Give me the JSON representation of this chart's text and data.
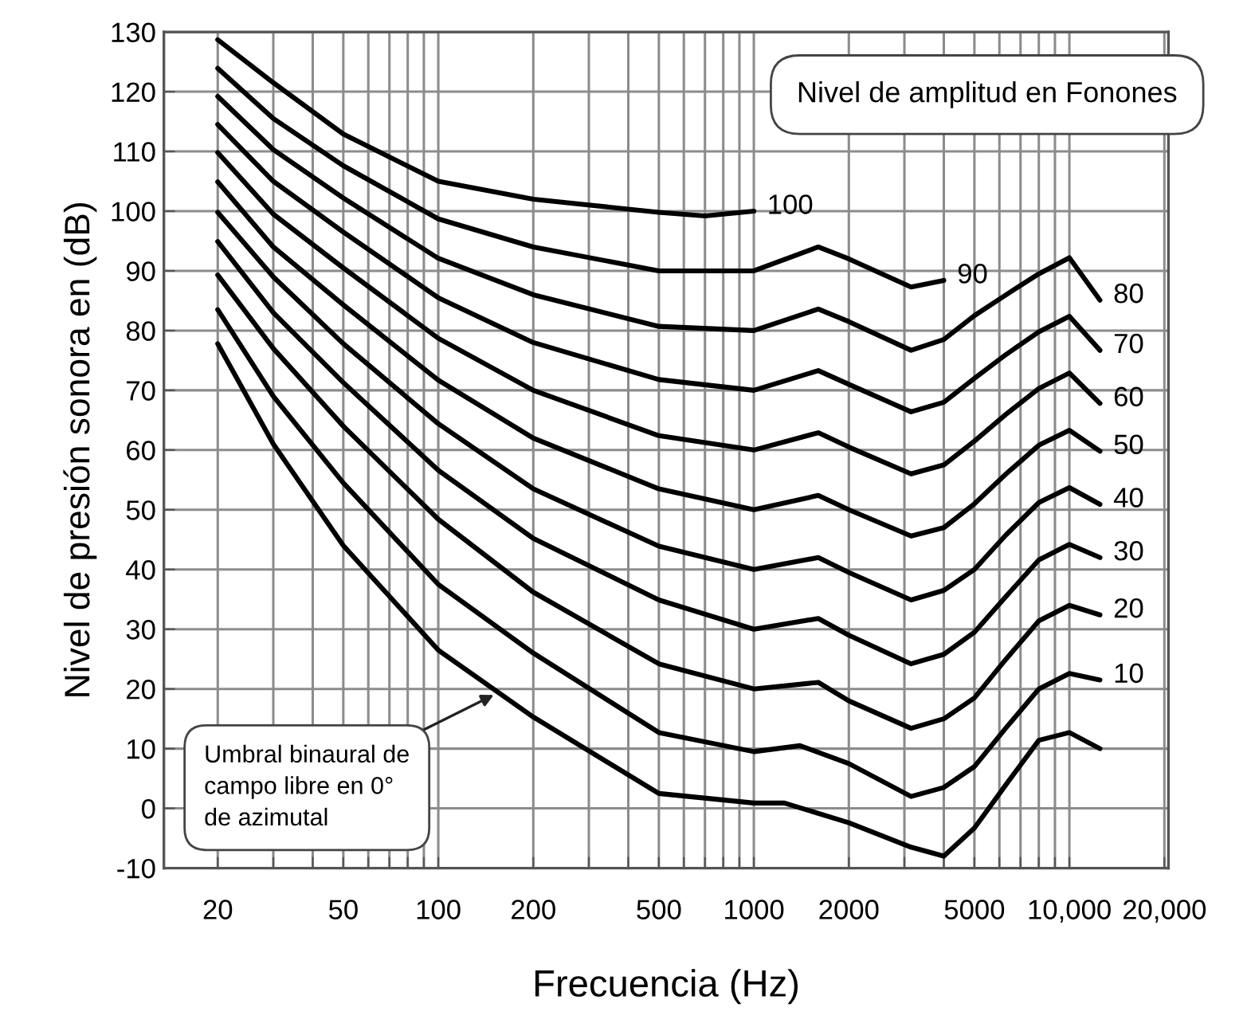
{
  "chart_data": {
    "type": "line",
    "xlabel": "Frecuencia (Hz)",
    "ylabel": "Nivel de presión sonora en (dB)",
    "log": "x",
    "grid": true,
    "legend": false,
    "xlim": [
      13.5,
      20600
    ],
    "ylim": [
      -10,
      130
    ],
    "xticks": [
      20,
      {
        "value": 30,
        "label": null
      },
      {
        "value": 40,
        "label": null
      },
      50,
      {
        "value": 60,
        "label": null
      },
      {
        "value": 70,
        "label": null
      },
      {
        "value": 80,
        "label": null
      },
      {
        "value": 90,
        "label": null
      },
      100,
      200,
      {
        "value": 300,
        "label": null
      },
      {
        "value": 400,
        "label": null
      },
      500,
      {
        "value": 600,
        "label": null
      },
      {
        "value": 700,
        "label": null
      },
      {
        "value": 800,
        "label": null
      },
      {
        "value": 900,
        "label": null
      },
      1000,
      2000,
      {
        "value": 3000,
        "label": null
      },
      {
        "value": 4000,
        "label": null
      },
      5000,
      {
        "value": 6000,
        "label": null
      },
      {
        "value": 7000,
        "label": null
      },
      {
        "value": 8000,
        "label": null
      },
      {
        "value": 9000,
        "label": null
      },
      {
        "value": 10000,
        "label": "10,000"
      },
      {
        "value": 20000,
        "label": "20,000"
      }
    ],
    "yticks": [
      -10,
      0,
      10,
      20,
      30,
      40,
      50,
      60,
      70,
      80,
      90,
      100,
      110,
      120,
      130
    ],
    "series": [
      {
        "name": "100",
        "color": "#000000",
        "x": [
          20,
          30,
          50,
          100,
          200,
          500,
          700,
          1000
        ],
        "values": [
          128.7,
          121.5,
          112.9,
          105,
          102,
          99.8,
          99.2,
          100
        ]
      },
      {
        "name": "90",
        "color": "#000000",
        "x": [
          20,
          30,
          50,
          100,
          200,
          500,
          1000,
          1600,
          2000,
          3150,
          4000
        ],
        "values": [
          123.9,
          115.5,
          107.6,
          98.7,
          94,
          90,
          90,
          94,
          92,
          87.3,
          88.4
        ]
      },
      {
        "name": "80",
        "color": "#000000",
        "x": [
          20,
          30,
          50,
          100,
          200,
          500,
          1000,
          1600,
          2000,
          3150,
          4000,
          5000,
          6300,
          8000,
          10000,
          12500
        ],
        "values": [
          119.2,
          110.3,
          102.2,
          92.1,
          86,
          80.7,
          80,
          83.6,
          81.5,
          76.7,
          78.5,
          82.5,
          86,
          89.5,
          92.2,
          85.1
        ]
      },
      {
        "name": "70",
        "color": "#000000",
        "x": [
          20,
          30,
          50,
          100,
          200,
          500,
          1000,
          1600,
          2000,
          3150,
          4000,
          5000,
          6300,
          8000,
          10000,
          12500
        ],
        "values": [
          114.5,
          105,
          96.5,
          85.5,
          78,
          71.8,
          70,
          73.3,
          71,
          66.4,
          68,
          72,
          76,
          79.8,
          82.4,
          76.7
        ]
      },
      {
        "name": "60",
        "color": "#000000",
        "x": [
          20,
          30,
          50,
          100,
          200,
          500,
          1000,
          1600,
          2000,
          3150,
          4000,
          5000,
          6300,
          8000,
          10000,
          12500
        ],
        "values": [
          109.8,
          99.5,
          90.5,
          78.7,
          70,
          62.4,
          60,
          62.9,
          60.5,
          56,
          57.5,
          61.5,
          66,
          70.3,
          72.9,
          67.8
        ]
      },
      {
        "name": "50",
        "color": "#000000",
        "x": [
          20,
          30,
          50,
          100,
          200,
          500,
          1000,
          1600,
          2000,
          3150,
          4000,
          5000,
          6300,
          8000,
          10000,
          12500
        ],
        "values": [
          104.9,
          94,
          84.3,
          71.7,
          62,
          53.5,
          50,
          52.4,
          50,
          45.6,
          47,
          51,
          56,
          60.8,
          63.3,
          59.8
        ]
      },
      {
        "name": "40",
        "color": "#000000",
        "x": [
          20,
          30,
          50,
          100,
          200,
          500,
          1000,
          1600,
          2000,
          3150,
          4000,
          5000,
          6300,
          8000,
          10000,
          12500
        ],
        "values": [
          99.8,
          89,
          77.8,
          64.4,
          53.5,
          43.9,
          40,
          42,
          39.5,
          34.9,
          36.5,
          40,
          45.8,
          51.2,
          53.7,
          50.9
        ]
      },
      {
        "name": "30",
        "color": "#000000",
        "x": [
          20,
          30,
          50,
          100,
          200,
          500,
          1000,
          1600,
          2000,
          3150,
          4000,
          5000,
          6300,
          8000,
          10000,
          12500
        ],
        "values": [
          94.9,
          83,
          71.3,
          56.6,
          45.2,
          34.9,
          30,
          31.8,
          29,
          24.2,
          25.8,
          29.5,
          35.5,
          41.6,
          44.2,
          42
        ]
      },
      {
        "name": "20",
        "color": "#000000",
        "x": [
          20,
          30,
          50,
          100,
          200,
          500,
          1000,
          1600,
          2000,
          3150,
          4000,
          5000,
          6300,
          8000,
          10000,
          12500
        ],
        "values": [
          89.3,
          77,
          64,
          48.4,
          36.2,
          24.2,
          20,
          21.1,
          18,
          13.4,
          15,
          18.5,
          25,
          31.4,
          34,
          32.4
        ]
      },
      {
        "name": "10",
        "color": "#000000",
        "x": [
          20,
          30,
          50,
          100,
          200,
          500,
          1000,
          1400,
          2000,
          3150,
          4000,
          5000,
          6300,
          8000,
          10000,
          12500
        ],
        "values": [
          83.5,
          69,
          54.5,
          37.5,
          26,
          12.7,
          9.5,
          10.5,
          7.5,
          2,
          3.5,
          7,
          13.5,
          20,
          22.6,
          21.5
        ]
      },
      {
        "color": "#000000",
        "x": [
          20,
          30,
          50,
          100,
          200,
          500,
          1000,
          1250,
          2000,
          3150,
          4000,
          5000,
          6300,
          8000,
          10000,
          12500
        ],
        "values": [
          77.8,
          61,
          44,
          26.5,
          15.3,
          2.5,
          0.9,
          0.9,
          -2.4,
          -6.5,
          -8,
          -3.3,
          4,
          11.4,
          12.7,
          10
        ]
      }
    ],
    "annotations": [
      "Nivel de amplitud en Fonones",
      {
        "text": "Umbral binaural de\ncampo libre en 0°\nde azimutal",
        "x": 150,
        "y": 19
      }
    ]
  }
}
